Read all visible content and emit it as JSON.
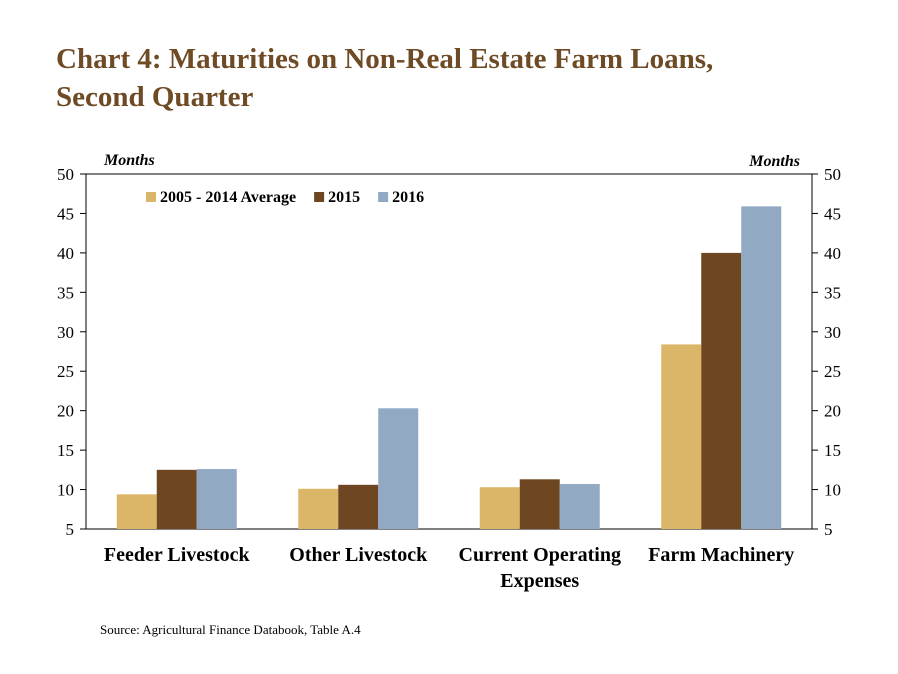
{
  "title": {
    "line1": "Chart 4: Maturities on Non-Real Estate Farm Loans,",
    "line2": "Second Quarter"
  },
  "source": "Source: Agricultural Finance Databook, Table A.4",
  "colors": {
    "title": "#6e4a25",
    "series": [
      "#dcb668",
      "#6f4622",
      "#92a9c4"
    ]
  },
  "chart_data": {
    "type": "bar",
    "categories": [
      [
        "Feeder Livestock"
      ],
      [
        "Other Livestock"
      ],
      [
        "Current Operating",
        "Expenses"
      ],
      [
        "Farm Machinery"
      ]
    ],
    "series": [
      {
        "name": "2005 - 2014 Average",
        "values": [
          9.4,
          10.1,
          10.3,
          28.4
        ]
      },
      {
        "name": "2015",
        "values": [
          12.5,
          10.6,
          11.3,
          40.0
        ]
      },
      {
        "name": "2016",
        "values": [
          12.6,
          20.3,
          10.7,
          45.9
        ]
      }
    ],
    "ylabel_left": "Months",
    "ylabel_right": "Months",
    "ylim": [
      5,
      50
    ],
    "yticks": [
      5,
      10,
      15,
      20,
      25,
      30,
      35,
      40,
      45,
      50
    ],
    "grid": false,
    "legend_position": "top-left"
  }
}
